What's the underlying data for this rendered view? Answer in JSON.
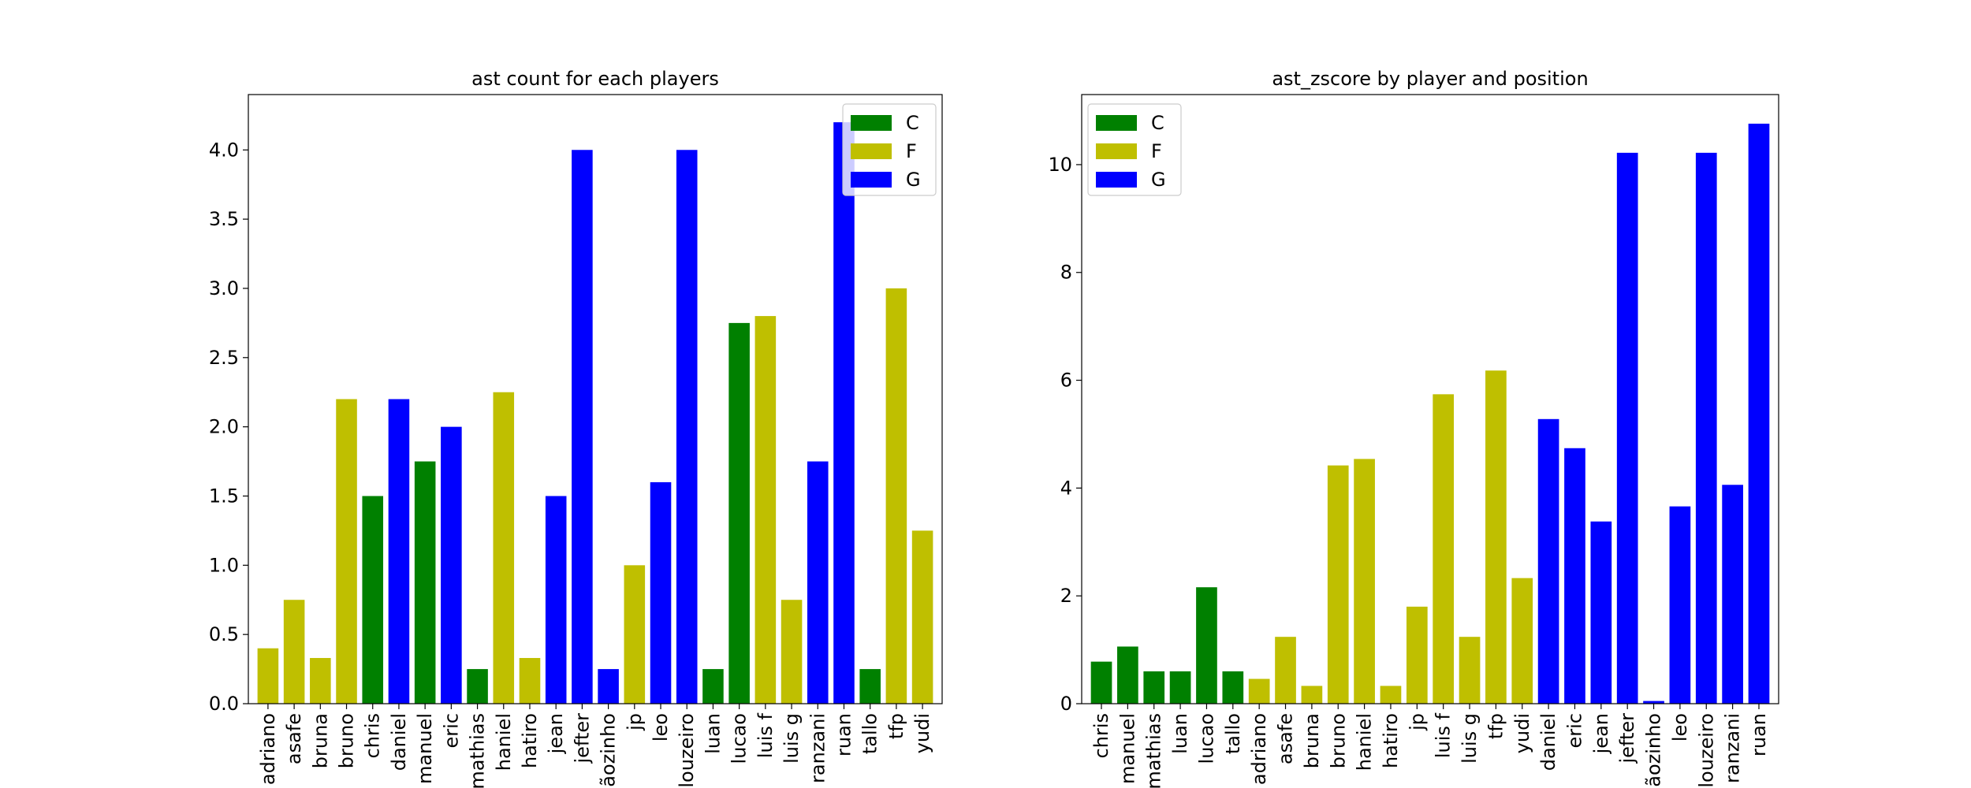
{
  "colors": {
    "C": "#008000",
    "F": "#bfbf00",
    "G": "#0000ff"
  },
  "chart_data": [
    {
      "type": "bar",
      "title": "ast count for each players",
      "xlabel": "",
      "ylabel": "",
      "ylim": [
        0,
        4.4
      ],
      "yticks": [
        "0.0",
        "0.5",
        "1.0",
        "1.5",
        "2.0",
        "2.5",
        "3.0",
        "3.5",
        "4.0"
      ],
      "legend": {
        "placement": "top-right",
        "entries": [
          "C",
          "F",
          "G"
        ]
      },
      "categories": [
        "adriano",
        "asafe",
        "bruna",
        "bruno",
        "chris",
        "daniel",
        "emanuel",
        "eric",
        "mathias",
        "haniel",
        "hatiro",
        "jean",
        "jefter",
        "joãozinho",
        "jp",
        "leo",
        "louzeiro",
        "luan",
        "lucao",
        "luis f",
        "luis g",
        "ranzani",
        "ruan",
        "tallo",
        "tfp",
        "yudi"
      ],
      "tick_labels": [
        "adriano",
        "asafe",
        "bruna",
        "bruno",
        "chris",
        "daniel",
        "manuel",
        "eric",
        "mathias",
        "haniel",
        "hatiro",
        "jean",
        "jefter",
        "ãozinho",
        "jp",
        "leo",
        "louzeiro",
        "luan",
        "lucao",
        "luis f",
        "luis g",
        "ranzani",
        "ruan",
        "tallo",
        "tfp",
        "yudi"
      ],
      "positions": [
        "F",
        "F",
        "F",
        "F",
        "C",
        "G",
        "C",
        "G",
        "C",
        "F",
        "F",
        "G",
        "G",
        "G",
        "F",
        "G",
        "G",
        "C",
        "C",
        "F",
        "F",
        "G",
        "G",
        "C",
        "F",
        "F"
      ],
      "values": [
        0.4,
        0.75,
        0.33,
        2.2,
        1.5,
        2.2,
        1.75,
        2.0,
        0.25,
        2.25,
        0.33,
        1.5,
        4.0,
        0.25,
        1.0,
        1.6,
        4.0,
        0.25,
        2.75,
        2.8,
        0.75,
        1.75,
        4.2,
        0.25,
        3.0,
        1.25
      ]
    },
    {
      "type": "bar",
      "title": "ast_zscore by player and position",
      "xlabel": "",
      "ylabel": "",
      "ylim": [
        0,
        11.3
      ],
      "yticks": [
        "0",
        "2",
        "4",
        "6",
        "8",
        "10"
      ],
      "legend": {
        "placement": "top-left",
        "entries": [
          "C",
          "F",
          "G"
        ]
      },
      "categories": [
        "chris",
        "emanuel",
        "mathias",
        "luan",
        "lucao",
        "tallo",
        "adriano",
        "asafe",
        "bruna",
        "bruno",
        "haniel",
        "hatiro",
        "jp",
        "luis f",
        "luis g",
        "tfp",
        "yudi",
        "daniel",
        "eric",
        "jean",
        "jefter",
        "joãozinho",
        "leo",
        "louzeiro",
        "ranzani",
        "ruan"
      ],
      "tick_labels": [
        "chris",
        "manuel",
        "mathias",
        "luan",
        "lucao",
        "tallo",
        "adriano",
        "asafe",
        "bruna",
        "bruno",
        "haniel",
        "hatiro",
        "jp",
        "luis f",
        "luis g",
        "tfp",
        "yudi",
        "daniel",
        "eric",
        "jean",
        "jefter",
        "ãozinho",
        "leo",
        "louzeiro",
        "ranzani",
        "ruan"
      ],
      "positions": [
        "C",
        "C",
        "C",
        "C",
        "C",
        "C",
        "F",
        "F",
        "F",
        "F",
        "F",
        "F",
        "F",
        "F",
        "F",
        "F",
        "F",
        "G",
        "G",
        "G",
        "G",
        "G",
        "G",
        "G",
        "G",
        "G"
      ],
      "values": [
        0.78,
        1.06,
        0.6,
        0.6,
        2.16,
        0.6,
        0.46,
        1.24,
        0.33,
        4.42,
        4.54,
        0.33,
        1.8,
        5.74,
        1.24,
        6.18,
        2.33,
        5.28,
        4.74,
        3.38,
        10.22,
        0.05,
        3.66,
        10.22,
        4.06,
        10.76
      ]
    }
  ]
}
